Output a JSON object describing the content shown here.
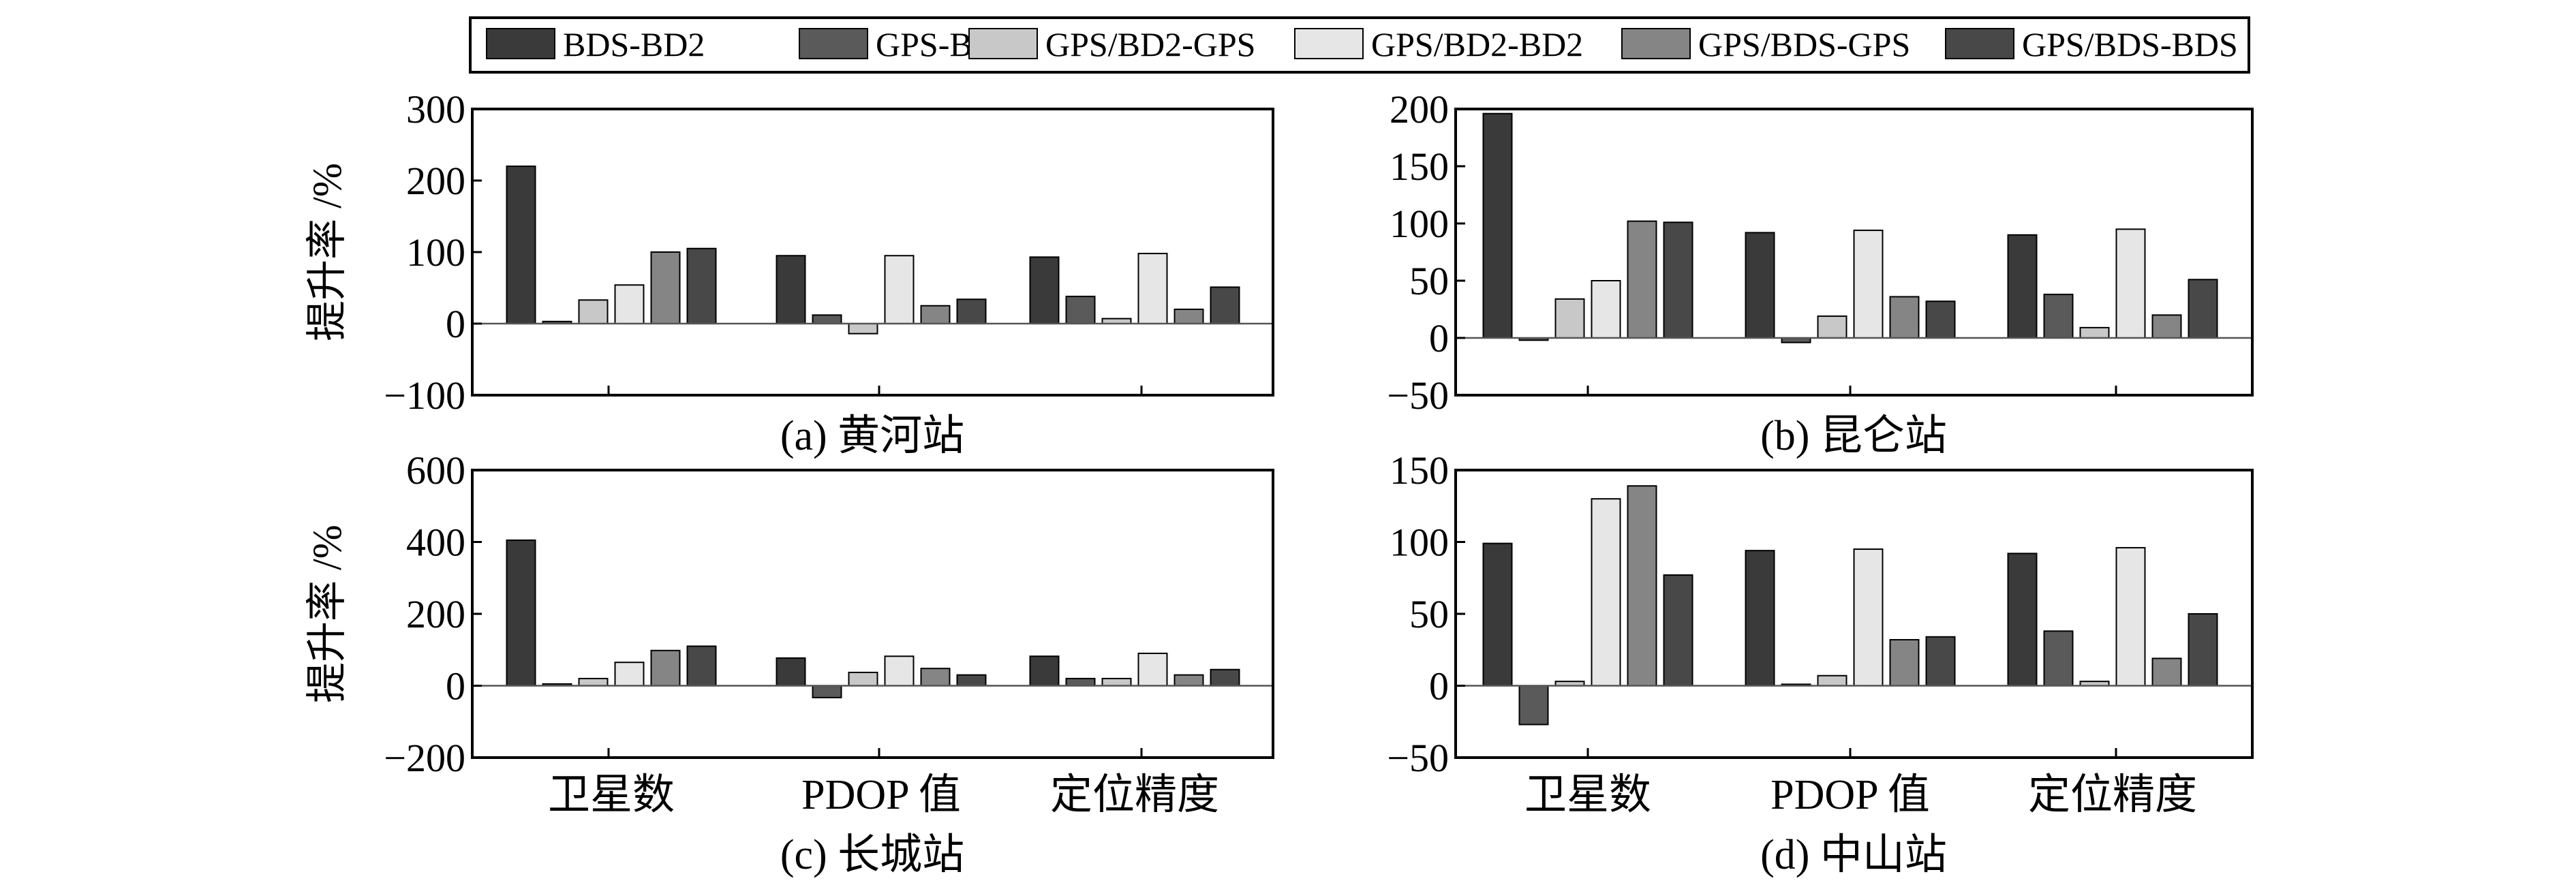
{
  "legend": [
    "BDS-BD2",
    "GPS-BDS",
    "GPS/BD2-GPS",
    "GPS/BD2-BD2",
    "GPS/BDS-GPS",
    "GPS/BDS-BDS"
  ],
  "colors": [
    "#3a3a3a",
    "#5a5a5a",
    "#c8c8c8",
    "#e6e6e6",
    "#858585",
    "#484848"
  ],
  "chart_data": [
    {
      "type": "bar",
      "caption": "(a) 黄河站",
      "ylabel": "提升率 /%",
      "categories": [
        "卫星数",
        "PDOP 值",
        "定位精度"
      ],
      "ylim": [
        -100,
        300
      ],
      "yticks": [
        "300",
        "200",
        "100",
        "0",
        "−100"
      ],
      "ytick_values": [
        300,
        200,
        100,
        0,
        -100
      ],
      "series": [
        {
          "name": "BDS-BD2",
          "values": [
            220,
            95,
            93
          ]
        },
        {
          "name": "GPS-BDS",
          "values": [
            3,
            12,
            38
          ]
        },
        {
          "name": "GPS/BD2-GPS",
          "values": [
            33,
            -14,
            7
          ]
        },
        {
          "name": "GPS/BD2-BD2",
          "values": [
            54,
            95,
            98
          ]
        },
        {
          "name": "GPS/BDS-GPS",
          "values": [
            100,
            25,
            20
          ]
        },
        {
          "name": "GPS/BDS-BDS",
          "values": [
            105,
            34,
            51
          ]
        }
      ]
    },
    {
      "type": "bar",
      "caption": "(b) 昆仑站",
      "ylabel": "",
      "categories": [
        "卫星数",
        "PDOP 值",
        "定位精度"
      ],
      "ylim": [
        -50,
        200
      ],
      "yticks": [
        "200",
        "150",
        "100",
        "50",
        "0",
        "−50"
      ],
      "ytick_values": [
        200,
        150,
        100,
        50,
        0,
        -50
      ],
      "series": [
        {
          "name": "BDS-BD2",
          "values": [
            196,
            92,
            90
          ]
        },
        {
          "name": "GPS-BDS",
          "values": [
            -2,
            -4,
            38
          ]
        },
        {
          "name": "GPS/BD2-GPS",
          "values": [
            34,
            19,
            9
          ]
        },
        {
          "name": "GPS/BD2-BD2",
          "values": [
            50,
            94,
            95
          ]
        },
        {
          "name": "GPS/BDS-GPS",
          "values": [
            102,
            36,
            20
          ]
        },
        {
          "name": "GPS/BDS-BDS",
          "values": [
            101,
            32,
            51
          ]
        }
      ]
    },
    {
      "type": "bar",
      "caption": "(c) 长城站",
      "ylabel": "提升率 /%",
      "categories": [
        "卫星数",
        "PDOP 值",
        "定位精度"
      ],
      "ylim": [
        -200,
        600
      ],
      "yticks": [
        "600",
        "400",
        "200",
        "0",
        "−200"
      ],
      "ytick_values": [
        600,
        400,
        200,
        0,
        -200
      ],
      "series": [
        {
          "name": "BDS-BD2",
          "values": [
            405,
            77,
            82
          ]
        },
        {
          "name": "GPS-BDS",
          "values": [
            5,
            -33,
            20
          ]
        },
        {
          "name": "GPS/BD2-GPS",
          "values": [
            20,
            37,
            20
          ]
        },
        {
          "name": "GPS/BD2-BD2",
          "values": [
            65,
            82,
            90
          ]
        },
        {
          "name": "GPS/BDS-GPS",
          "values": [
            98,
            48,
            30
          ]
        },
        {
          "name": "GPS/BDS-BDS",
          "values": [
            110,
            30,
            45
          ]
        }
      ]
    },
    {
      "type": "bar",
      "caption": "(d) 中山站",
      "ylabel": "",
      "categories": [
        "卫星数",
        "PDOP 值",
        "定位精度"
      ],
      "ylim": [
        -50,
        150
      ],
      "yticks": [
        "150",
        "100",
        "50",
        "0",
        "−50"
      ],
      "ytick_values": [
        150,
        100,
        50,
        0,
        -50
      ],
      "series": [
        {
          "name": "BDS-BD2",
          "values": [
            99,
            94,
            92
          ]
        },
        {
          "name": "GPS-BDS",
          "values": [
            -27,
            1,
            38
          ]
        },
        {
          "name": "GPS/BD2-GPS",
          "values": [
            3,
            7,
            3
          ]
        },
        {
          "name": "GPS/BD2-BD2",
          "values": [
            130,
            95,
            96
          ]
        },
        {
          "name": "GPS/BDS-GPS",
          "values": [
            139,
            32,
            19
          ]
        },
        {
          "name": "GPS/BDS-BDS",
          "values": [
            77,
            34,
            50
          ]
        }
      ]
    }
  ]
}
